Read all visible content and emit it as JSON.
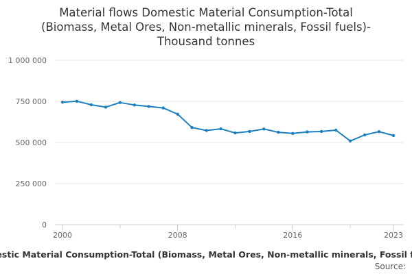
{
  "chart_data": {
    "type": "line",
    "title": "Material flows Domestic Material Consumption-Total (Biomass, Metal Ores, Non-metallic minerals, Fossil fuels)-Thousand tonnes",
    "title_lines": [
      "Material flows Domestic Material Consumption-Total",
      "(Biomass, Metal Ores, Non-metallic minerals, Fossil fuels)-",
      "Thousand tonnes"
    ],
    "xlabel": "",
    "ylabel": "",
    "x": [
      2000,
      2001,
      2002,
      2003,
      2004,
      2005,
      2006,
      2007,
      2008,
      2009,
      2010,
      2011,
      2012,
      2013,
      2014,
      2015,
      2016,
      2017,
      2018,
      2019,
      2020,
      2021,
      2022,
      2023
    ],
    "series": [
      {
        "name": "Domestic Material Consumption-Total (Biomass, Metal Ores, Non-metallic minerals, Fossil fuels)",
        "color": "#1a7fbf",
        "values": [
          745000,
          751000,
          729000,
          715000,
          743000,
          728000,
          719000,
          710000,
          672000,
          591000,
          573000,
          583000,
          558000,
          567000,
          582000,
          562000,
          555000,
          564000,
          567000,
          575000,
          509000,
          546000,
          566000,
          542000
        ]
      }
    ],
    "xlim": [
      2000,
      2023
    ],
    "ylim": [
      0,
      1000000
    ],
    "y_ticks": [
      0,
      250000,
      500000,
      750000,
      1000000
    ],
    "y_tick_labels": [
      "0",
      "250 000",
      "500 000",
      "750 000",
      "1 000 000"
    ],
    "x_ticks": [
      2000,
      2008,
      2016,
      2023
    ],
    "x_tick_labels": [
      "2000",
      "2008",
      "2016",
      "2023"
    ],
    "grid": true,
    "legend_position": "bottom",
    "legend_text": "Domestic Material Consumption-Total (Biomass, Metal Ores, Non-metallic minerals, Fossil fuels)",
    "source_label": "Source:"
  }
}
